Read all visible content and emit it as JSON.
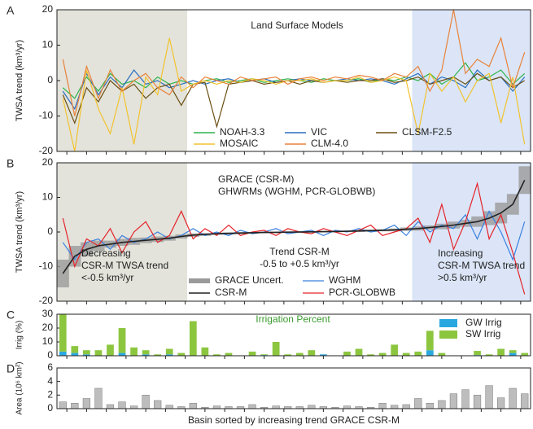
{
  "chart_data": [
    {
      "type": "line",
      "panel_label": "A",
      "title": "Land Surface Models",
      "ylabel": "TWSA trend (km³/yr)",
      "x": [
        1,
        2,
        3,
        4,
        5,
        6,
        7,
        8,
        9,
        10,
        11,
        12,
        13,
        14,
        15,
        16,
        17,
        18,
        19,
        20,
        21,
        22,
        23,
        24,
        25,
        26,
        27,
        28,
        29,
        30,
        31,
        32,
        33,
        34,
        35,
        36,
        37,
        38,
        39,
        40
      ],
      "xlim": [
        0.5,
        40.5
      ],
      "ylim": [
        -20,
        20
      ],
      "yticks": [
        -20,
        -10,
        0,
        10,
        20
      ],
      "shaded_regions": [
        {
          "xlim": [
            0.5,
            11.5
          ],
          "color": "#e3e3db"
        },
        {
          "xlim": [
            30.5,
            40.5
          ],
          "color": "#dbe5f7"
        }
      ],
      "series": [
        {
          "name": "NOAH-3.3",
          "color": "#2db34a",
          "values": [
            -2,
            -5,
            1,
            -3,
            2,
            -1,
            0,
            -2,
            1,
            -1,
            0,
            -1,
            0,
            0.5,
            -0.5,
            0,
            0.5,
            -0.5,
            0,
            0.5,
            0,
            -0.5,
            0.5,
            0,
            0,
            0.5,
            -0.5,
            0.5,
            0,
            1,
            0,
            2,
            -1,
            1,
            5,
            0,
            1,
            3,
            -1,
            2
          ]
        },
        {
          "name": "VIC",
          "color": "#2a6fc0",
          "values": [
            -3,
            -8,
            2,
            -4,
            1,
            -2,
            3,
            -1,
            0,
            -2,
            -1,
            0,
            -1,
            0,
            0.5,
            -0.5,
            0,
            0.5,
            -0.5,
            0,
            0.5,
            0,
            -0.5,
            0,
            0.5,
            0,
            0.5,
            0,
            -1,
            0.5,
            2,
            -1,
            1,
            0,
            -2,
            3,
            0,
            1,
            -3,
            1
          ]
        },
        {
          "name": "CLSM-F2.5",
          "color": "#6b4f12",
          "values": [
            -4,
            -12,
            -2,
            -6,
            0,
            -3,
            -1,
            -5,
            -2,
            -1,
            -7,
            -1,
            -0.5,
            -13,
            -1,
            -0.5,
            0,
            -1,
            -0.5,
            0,
            -1,
            0,
            -0.5,
            0,
            -0.5,
            0,
            0,
            0.5,
            -0.5,
            0,
            1,
            -1,
            0,
            1,
            -1,
            2,
            0,
            1,
            -2,
            0
          ]
        },
        {
          "name": "MOSAIC",
          "color": "#f2c22e",
          "values": [
            -5,
            -20,
            3,
            -8,
            -15,
            -2,
            -18,
            1,
            -4,
            12,
            -3,
            -1,
            0,
            -1,
            0,
            -0.5,
            0.5,
            0,
            -1,
            0,
            0,
            0.5,
            -0.5,
            0,
            0,
            1,
            -0.5,
            0,
            1,
            0,
            -15,
            2,
            -3,
            1,
            -6,
            0,
            2,
            -12,
            1,
            -18
          ]
        },
        {
          "name": "CLM-4.0",
          "color": "#e8823a",
          "values": [
            6,
            -10,
            4,
            -5,
            3,
            -3,
            0,
            2,
            -2,
            -4,
            1,
            -2,
            1,
            0,
            -1,
            1,
            0,
            0.5,
            1,
            -1,
            0.5,
            1,
            0,
            1,
            0.5,
            1.5,
            1,
            0,
            2,
            1,
            4,
            -3,
            3,
            20,
            2,
            6,
            4,
            12,
            -2,
            8
          ]
        }
      ]
    },
    {
      "type": "line",
      "panel_label": "B",
      "ylabel": "TWSA trend (km³/yr)",
      "title_lines": [
        "GRACE (CSR-M)",
        "GHWRMs (WGHM, PCR-GLOBWB)"
      ],
      "annotations": [
        {
          "lines": [
            "Decreasing",
            "CSR-M TWSA trend",
            "<-0.5 km³/yr"
          ]
        },
        {
          "lines": [
            "Trend CSR-M",
            "-0.5 to +0.5 km³/yr"
          ]
        },
        {
          "lines": [
            "Increasing",
            "CSR-M TWSA trend",
            ">0.5 km³/yr"
          ]
        }
      ],
      "x": [
        1,
        2,
        3,
        4,
        5,
        6,
        7,
        8,
        9,
        10,
        11,
        12,
        13,
        14,
        15,
        16,
        17,
        18,
        19,
        20,
        21,
        22,
        23,
        24,
        25,
        26,
        27,
        28,
        29,
        30,
        31,
        32,
        33,
        34,
        35,
        36,
        37,
        38,
        39,
        40
      ],
      "xlim": [
        0.5,
        40.5
      ],
      "ylim": [
        -20,
        20
      ],
      "yticks": [
        -20,
        -10,
        0,
        10,
        20
      ],
      "shaded_regions": [
        {
          "xlim": [
            0.5,
            11.5
          ],
          "color": "#e3e3db"
        },
        {
          "xlim": [
            30.5,
            40.5
          ],
          "color": "#dbe5f7"
        }
      ],
      "series": [
        {
          "name": "CSR-M",
          "color": "#222222",
          "uncertainty_name": "GRACE Uncert.",
          "uncertainty_color": "#9a9a9a",
          "values": [
            -12,
            -7,
            -5,
            -4,
            -3.5,
            -3,
            -2.7,
            -2.4,
            -2.1,
            -1.8,
            -1.3,
            -0.9,
            -0.7,
            -0.5,
            -0.4,
            -0.3,
            -0.2,
            -0.15,
            -0.1,
            -0.05,
            0,
            0.05,
            0.1,
            0.15,
            0.2,
            0.3,
            0.4,
            0.5,
            0.6,
            0.8,
            1,
            1.3,
            1.6,
            2,
            2.5,
            3,
            4,
            5.5,
            8,
            15
          ],
          "uncertainty": [
            4,
            3,
            2,
            1.5,
            1,
            1,
            1,
            0.8,
            0.8,
            0.7,
            0.6,
            0.5,
            0.4,
            0.3,
            0.3,
            0.3,
            0.2,
            0.2,
            0.2,
            0.2,
            0.2,
            0.2,
            0.2,
            0.2,
            0.2,
            0.3,
            0.3,
            0.3,
            0.4,
            0.5,
            0.6,
            0.6,
            0.8,
            1,
            1,
            1.5,
            2,
            3,
            3,
            4
          ]
        },
        {
          "name": "WGHM",
          "color": "#3b82e0",
          "values": [
            -3,
            -8,
            -3,
            -2,
            -5,
            -1,
            -3,
            -2,
            0,
            -2,
            -1,
            1,
            -1,
            0,
            -1,
            0.5,
            -0.5,
            0,
            1,
            -0.5,
            0,
            0.5,
            -1,
            0.5,
            0,
            1,
            0,
            0.5,
            2,
            -1,
            3,
            0,
            2,
            1,
            5,
            -2,
            6,
            0,
            -8,
            3
          ]
        },
        {
          "name": "PCR-GLOBWB",
          "color": "#e5242a",
          "values": [
            4,
            -10,
            -2,
            -4,
            1,
            -6,
            0,
            3,
            -3,
            -1,
            6,
            -2,
            1,
            -1,
            2,
            -1,
            0,
            0.5,
            -1,
            1,
            0,
            -0.5,
            1,
            0,
            -1,
            0.5,
            2,
            -1,
            0,
            1,
            4,
            -3,
            8,
            -5,
            3,
            14,
            -2,
            5,
            -6,
            -18
          ]
        }
      ]
    },
    {
      "type": "bar",
      "panel_label": "C",
      "title": "Irrigation Percent",
      "title_color": "#3a9a2e",
      "ylabel": "Irrig (%)",
      "x": [
        1,
        2,
        3,
        4,
        5,
        6,
        7,
        8,
        9,
        10,
        11,
        12,
        13,
        14,
        15,
        16,
        17,
        18,
        19,
        20,
        21,
        22,
        23,
        24,
        25,
        26,
        27,
        28,
        29,
        30,
        31,
        32,
        33,
        34,
        35,
        36,
        37,
        38,
        39,
        40
      ],
      "xlim": [
        0.5,
        40.5
      ],
      "ylim": [
        0,
        30
      ],
      "yticks": [
        0,
        10,
        20,
        30
      ],
      "series": [
        {
          "name": "GW Irrig",
          "color": "#29a8e0",
          "values": [
            3,
            2,
            1,
            0,
            0,
            2,
            0,
            1,
            0,
            1,
            0,
            0,
            0,
            0,
            0,
            0,
            0,
            0.5,
            0,
            0,
            0,
            0,
            1,
            0,
            0,
            0,
            0,
            0,
            0,
            0,
            0,
            4,
            0,
            0,
            0,
            0.5,
            0,
            0,
            2,
            0
          ]
        },
        {
          "name": "SW Irrig",
          "color": "#8cc63f",
          "values": [
            27,
            5,
            3,
            4,
            8,
            18,
            6,
            3,
            1,
            4,
            2,
            25,
            6,
            1,
            2,
            0,
            3,
            0.5,
            10,
            1,
            2,
            4,
            0,
            0,
            3,
            5,
            1,
            2,
            8,
            2,
            3,
            14,
            2,
            0,
            0,
            3,
            1,
            5,
            2,
            2
          ]
        }
      ]
    },
    {
      "type": "bar",
      "panel_label": "D",
      "ylabel": "Area (10⁶ km²)",
      "xlabel": "Basin sorted by increasing trend GRACE CSR-M",
      "x": [
        1,
        2,
        3,
        4,
        5,
        6,
        7,
        8,
        9,
        10,
        11,
        12,
        13,
        14,
        15,
        16,
        17,
        18,
        19,
        20,
        21,
        22,
        23,
        24,
        25,
        26,
        27,
        28,
        29,
        30,
        31,
        32,
        33,
        34,
        35,
        36,
        37,
        38,
        39,
        40
      ],
      "xlim": [
        0.5,
        40.5
      ],
      "ylim": [
        0,
        6
      ],
      "yticks": [
        0,
        2,
        4,
        6
      ],
      "series": [
        {
          "color": "#bdbdbd",
          "values": [
            1,
            0.8,
            1.5,
            3,
            0.6,
            1,
            0.4,
            2,
            1.2,
            0.5,
            0.3,
            0.8,
            0.2,
            0.4,
            0.3,
            0.3,
            0.6,
            0.2,
            0.4,
            0.3,
            0.3,
            0.5,
            0.3,
            0.2,
            0.4,
            0.3,
            0.2,
            0.8,
            0.5,
            0.6,
            1.5,
            0.8,
            1.2,
            2.2,
            2.8,
            2,
            3.4,
            1.6,
            3,
            2.2
          ]
        }
      ]
    }
  ]
}
